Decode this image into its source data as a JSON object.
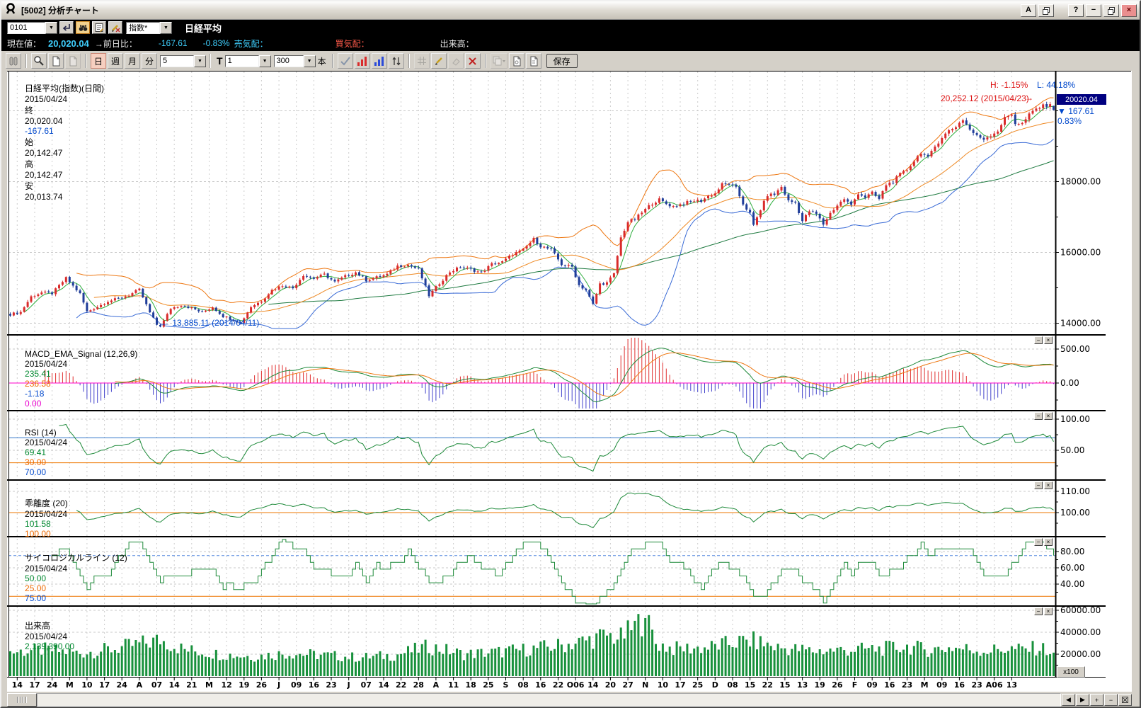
{
  "window": {
    "title": "[5002] 分析チャート",
    "buttons": {
      "font": "A",
      "help": "?",
      "minimize": "−",
      "close": "×"
    }
  },
  "symbol_bar": {
    "code": "0101",
    "category": "指数*",
    "name": "日経平均"
  },
  "quote_bar": {
    "label_last": "現在値：",
    "last": "20,020.04",
    "label_change": "→前日比：",
    "change": "-167.61",
    "change_pct": "-0.83%",
    "label_ask": "売気配：",
    "label_bid": "買気配：",
    "label_volume": "出来高："
  },
  "toolbar": {
    "period_day": "日",
    "period_week": "週",
    "period_month": "月",
    "period_min": "分",
    "min_value": "5",
    "t_label": "T",
    "t_value": "1",
    "bars_value": "300",
    "bars_unit": "本",
    "save": "保存"
  },
  "x_axis": {
    "first_index": 2,
    "step": 5,
    "labels": [
      "14",
      "17",
      "24",
      "M",
      "10",
      "17",
      "24",
      "A",
      "07",
      "14",
      "21",
      "M",
      "12",
      "19",
      "26",
      "J",
      "09",
      "16",
      "23",
      "J",
      "07",
      "14",
      "22",
      "28",
      "A",
      "11",
      "18",
      "25",
      "S",
      "08",
      "16",
      "22",
      "O06",
      "14",
      "20",
      "27",
      "N",
      "10",
      "17",
      "25",
      "D",
      "08",
      "15",
      "22",
      "15",
      "13",
      "19",
      "26",
      "F",
      "09",
      "16",
      "23",
      "M",
      "09",
      "16",
      "23",
      "A06",
      "13"
    ]
  },
  "chart_data": [
    {
      "type": "candlestick",
      "title": "日経平均(指数)(日間)",
      "date": "2015/04/24",
      "ohlc_legend": {
        "close_label": "終",
        "close": "20,020.04",
        "change": "-167.61",
        "open_label": "始",
        "open": "20,142.47",
        "high_label": "高",
        "high": "20,142.47",
        "low_label": "安",
        "low": "20,013.74"
      },
      "y_ticks": [
        "18000.00",
        "16000.00",
        "14000.00"
      ],
      "y_tick_values": [
        18000,
        16000,
        14000
      ],
      "y_minor_ticks": [
        20000,
        19000,
        17000,
        15000
      ],
      "ylim": [
        13850,
        20850
      ],
      "bars": 300,
      "marker": {
        "price": "20020.04",
        "change": "167.61",
        "change_pct": "0.83%"
      },
      "annotations": {
        "high_pct": "H: -1.15%",
        "low_pct": "L: 44.18%",
        "high": "20,252.12 (2015/04/23)",
        "low": "← 13,885.11 (2014/04/11)"
      },
      "last_ohlc": [
        20142.47,
        20142.47,
        20013.74,
        20020.04
      ],
      "colors": {
        "up": "#d92b2b",
        "down": "#1f3d99",
        "ma5": "#2fae3e",
        "ma25": "#ee8822",
        "ma75": "#1e7a40",
        "band_upper": "#ee7711",
        "band_lower": "#3a6bd6"
      },
      "close_anchors": [
        [
          0,
          14250
        ],
        [
          3,
          14313
        ],
        [
          6,
          14750
        ],
        [
          9,
          14865
        ],
        [
          12,
          14841
        ],
        [
          16,
          15274
        ],
        [
          20,
          14830
        ],
        [
          22,
          14327
        ],
        [
          25,
          14462
        ],
        [
          28,
          14622
        ],
        [
          31,
          14696
        ],
        [
          34,
          14791
        ],
        [
          37,
          14946
        ],
        [
          40,
          14300
        ],
        [
          42,
          13960
        ],
        [
          43,
          13885
        ],
        [
          46,
          14417
        ],
        [
          49,
          14512
        ],
        [
          52,
          14429
        ],
        [
          55,
          14304
        ],
        [
          58,
          14457
        ],
        [
          61,
          14199
        ],
        [
          64,
          14097
        ],
        [
          66,
          14006
        ],
        [
          69,
          14462
        ],
        [
          72,
          14636
        ],
        [
          75,
          14935
        ],
        [
          78,
          15068
        ],
        [
          81,
          14994
        ],
        [
          84,
          15361
        ],
        [
          87,
          15266
        ],
        [
          90,
          15376
        ],
        [
          93,
          15162
        ],
        [
          96,
          15326
        ],
        [
          99,
          15437
        ],
        [
          102,
          15216
        ],
        [
          105,
          15296
        ],
        [
          108,
          15379
        ],
        [
          111,
          15618
        ],
        [
          114,
          15646
        ],
        [
          117,
          15523
        ],
        [
          120,
          14778
        ],
        [
          123,
          15130
        ],
        [
          126,
          15449
        ],
        [
          129,
          15586
        ],
        [
          132,
          15521
        ],
        [
          135,
          15424
        ],
        [
          138,
          15668
        ],
        [
          141,
          15729
        ],
        [
          144,
          15948
        ],
        [
          147,
          16067
        ],
        [
          150,
          16374
        ],
        [
          152,
          16174
        ],
        [
          155,
          16082
        ],
        [
          158,
          15661
        ],
        [
          161,
          15595
        ],
        [
          163,
          15073
        ],
        [
          165,
          14936
        ],
        [
          167,
          14532
        ],
        [
          169,
          15111
        ],
        [
          171,
          15139
        ],
        [
          173,
          15388
        ],
        [
          175,
          16413
        ],
        [
          177,
          16862
        ],
        [
          179,
          16937
        ],
        [
          181,
          17124
        ],
        [
          184,
          17392
        ],
        [
          186,
          17490
        ],
        [
          188,
          17370
        ],
        [
          190,
          17300
        ],
        [
          192,
          17357
        ],
        [
          194,
          17410
        ],
        [
          196,
          17459
        ],
        [
          198,
          17460
        ],
        [
          200,
          17590
        ],
        [
          202,
          17663
        ],
        [
          204,
          17920
        ],
        [
          206,
          17935
        ],
        [
          208,
          17813
        ],
        [
          210,
          17372
        ],
        [
          212,
          17099
        ],
        [
          213,
          16755
        ],
        [
          215,
          17210
        ],
        [
          217,
          17621
        ],
        [
          219,
          17635
        ],
        [
          221,
          17854
        ],
        [
          223,
          17451
        ],
        [
          225,
          17409
        ],
        [
          227,
          16883
        ],
        [
          229,
          17167
        ],
        [
          231,
          17087
        ],
        [
          233,
          16795
        ],
        [
          235,
          17108
        ],
        [
          237,
          17329
        ],
        [
          239,
          17511
        ],
        [
          241,
          17329
        ],
        [
          243,
          17674
        ],
        [
          245,
          17558
        ],
        [
          247,
          17678
        ],
        [
          249,
          17504
        ],
        [
          251,
          17913
        ],
        [
          253,
          18004
        ],
        [
          255,
          18199
        ],
        [
          257,
          18332
        ],
        [
          259,
          18586
        ],
        [
          261,
          18826
        ],
        [
          263,
          18665
        ],
        [
          265,
          18991
        ],
        [
          267,
          19254
        ],
        [
          269,
          19437
        ],
        [
          271,
          19560
        ],
        [
          273,
          19754
        ],
        [
          275,
          19471
        ],
        [
          277,
          19286
        ],
        [
          279,
          19207
        ],
        [
          281,
          19312
        ],
        [
          283,
          19435
        ],
        [
          285,
          19789
        ],
        [
          287,
          19908
        ],
        [
          288,
          19652
        ],
        [
          290,
          19634
        ],
        [
          292,
          19885
        ],
        [
          294,
          20058
        ],
        [
          296,
          20133
        ],
        [
          298,
          20187
        ],
        [
          299,
          20020
        ]
      ]
    },
    {
      "type": "macd",
      "label": "MACD_EMA_Signal (12,26,9)",
      "date": "2015/04/24",
      "values": {
        "macd": "235.41",
        "signal": "236.58",
        "osc": "-1.18",
        "zero": "0.00"
      },
      "params": [
        12,
        26,
        9
      ],
      "y_ticks": [
        "500.00",
        "0.00"
      ],
      "y_tick_values": [
        500,
        0
      ],
      "y_minor_ticks": [
        250,
        -250
      ],
      "colors": {
        "macd": "#1e8a3a",
        "signal": "#ee7711",
        "osc_pos": "#e03030",
        "osc_neg": "#4444cc",
        "zero_line": "#ff00cc"
      }
    },
    {
      "type": "rsi",
      "label": "RSI (14)",
      "date": "2015/04/24",
      "values": {
        "rsi": "69.41",
        "low": "30.00",
        "high": "70.00"
      },
      "y_ticks": [
        "100.00",
        "50.00"
      ],
      "y_tick_values": [
        100,
        50
      ],
      "y_minor_ticks": [
        75,
        25
      ],
      "hlines": [
        70,
        30
      ],
      "colors": {
        "rsi": "#1e8a3a",
        "high_line": "#3377cc",
        "low_line": "#ee7700"
      }
    },
    {
      "type": "deviation",
      "label": "乖離度 (20)",
      "date": "2015/04/24",
      "values": {
        "dev": "101.58",
        "base": "100.00"
      },
      "y_ticks": [
        "110.00",
        "100.00"
      ],
      "y_tick_values": [
        110,
        100
      ],
      "y_minor_ticks": [
        105,
        95
      ],
      "hlines": [
        100
      ],
      "colors": {
        "dev": "#1e8a3a",
        "base_line": "#ee7700"
      }
    },
    {
      "type": "psychological",
      "label": "サイコロジカルライン (12)",
      "date": "2015/04/24",
      "values": {
        "psy": "50.00",
        "low": "25.00",
        "high": "75.00"
      },
      "y_ticks": [
        "80.00",
        "60.00",
        "40.00"
      ],
      "y_tick_values": [
        80,
        60,
        40
      ],
      "y_minor_ticks": [
        70,
        50,
        30
      ],
      "hlines": [
        75,
        25
      ],
      "colors": {
        "psy": "#1e8a3a",
        "high_line": "#5588dd",
        "low_line": "#ee7700"
      }
    },
    {
      "type": "volume",
      "label": "出来高",
      "date": "2015/04/24",
      "values": {
        "volume": "2,139,390.00"
      },
      "y_ticks": [
        "60000.00",
        "40000.00",
        "20000.00"
      ],
      "y_tick_values": [
        60000,
        40000,
        20000
      ],
      "y_minor_ticks": [
        50000,
        30000,
        10000
      ],
      "unit": "x100",
      "last_volume": 21394,
      "colors": {
        "bar": "#18913c"
      },
      "volume_anchors": [
        [
          0,
          22000
        ],
        [
          10,
          24000
        ],
        [
          20,
          21000
        ],
        [
          30,
          25000
        ],
        [
          40,
          31000
        ],
        [
          43,
          33000
        ],
        [
          50,
          24000
        ],
        [
          60,
          20000
        ],
        [
          70,
          18000
        ],
        [
          80,
          21000
        ],
        [
          90,
          19000
        ],
        [
          100,
          17000
        ],
        [
          110,
          19000
        ],
        [
          120,
          27000
        ],
        [
          130,
          20000
        ],
        [
          140,
          22000
        ],
        [
          150,
          25000
        ],
        [
          158,
          28000
        ],
        [
          163,
          31000
        ],
        [
          167,
          34000
        ],
        [
          171,
          37000
        ],
        [
          175,
          35000
        ],
        [
          182,
          53000
        ],
        [
          185,
          30000
        ],
        [
          190,
          25000
        ],
        [
          200,
          26000
        ],
        [
          205,
          29000
        ],
        [
          208,
          31000
        ],
        [
          213,
          32000
        ],
        [
          220,
          26000
        ],
        [
          230,
          23000
        ],
        [
          240,
          24000
        ],
        [
          250,
          25000
        ],
        [
          257,
          27000
        ],
        [
          263,
          24000
        ],
        [
          270,
          26000
        ],
        [
          280,
          23000
        ],
        [
          285,
          25000
        ],
        [
          290,
          24000
        ],
        [
          295,
          26000
        ],
        [
          299,
          21394
        ]
      ]
    }
  ]
}
